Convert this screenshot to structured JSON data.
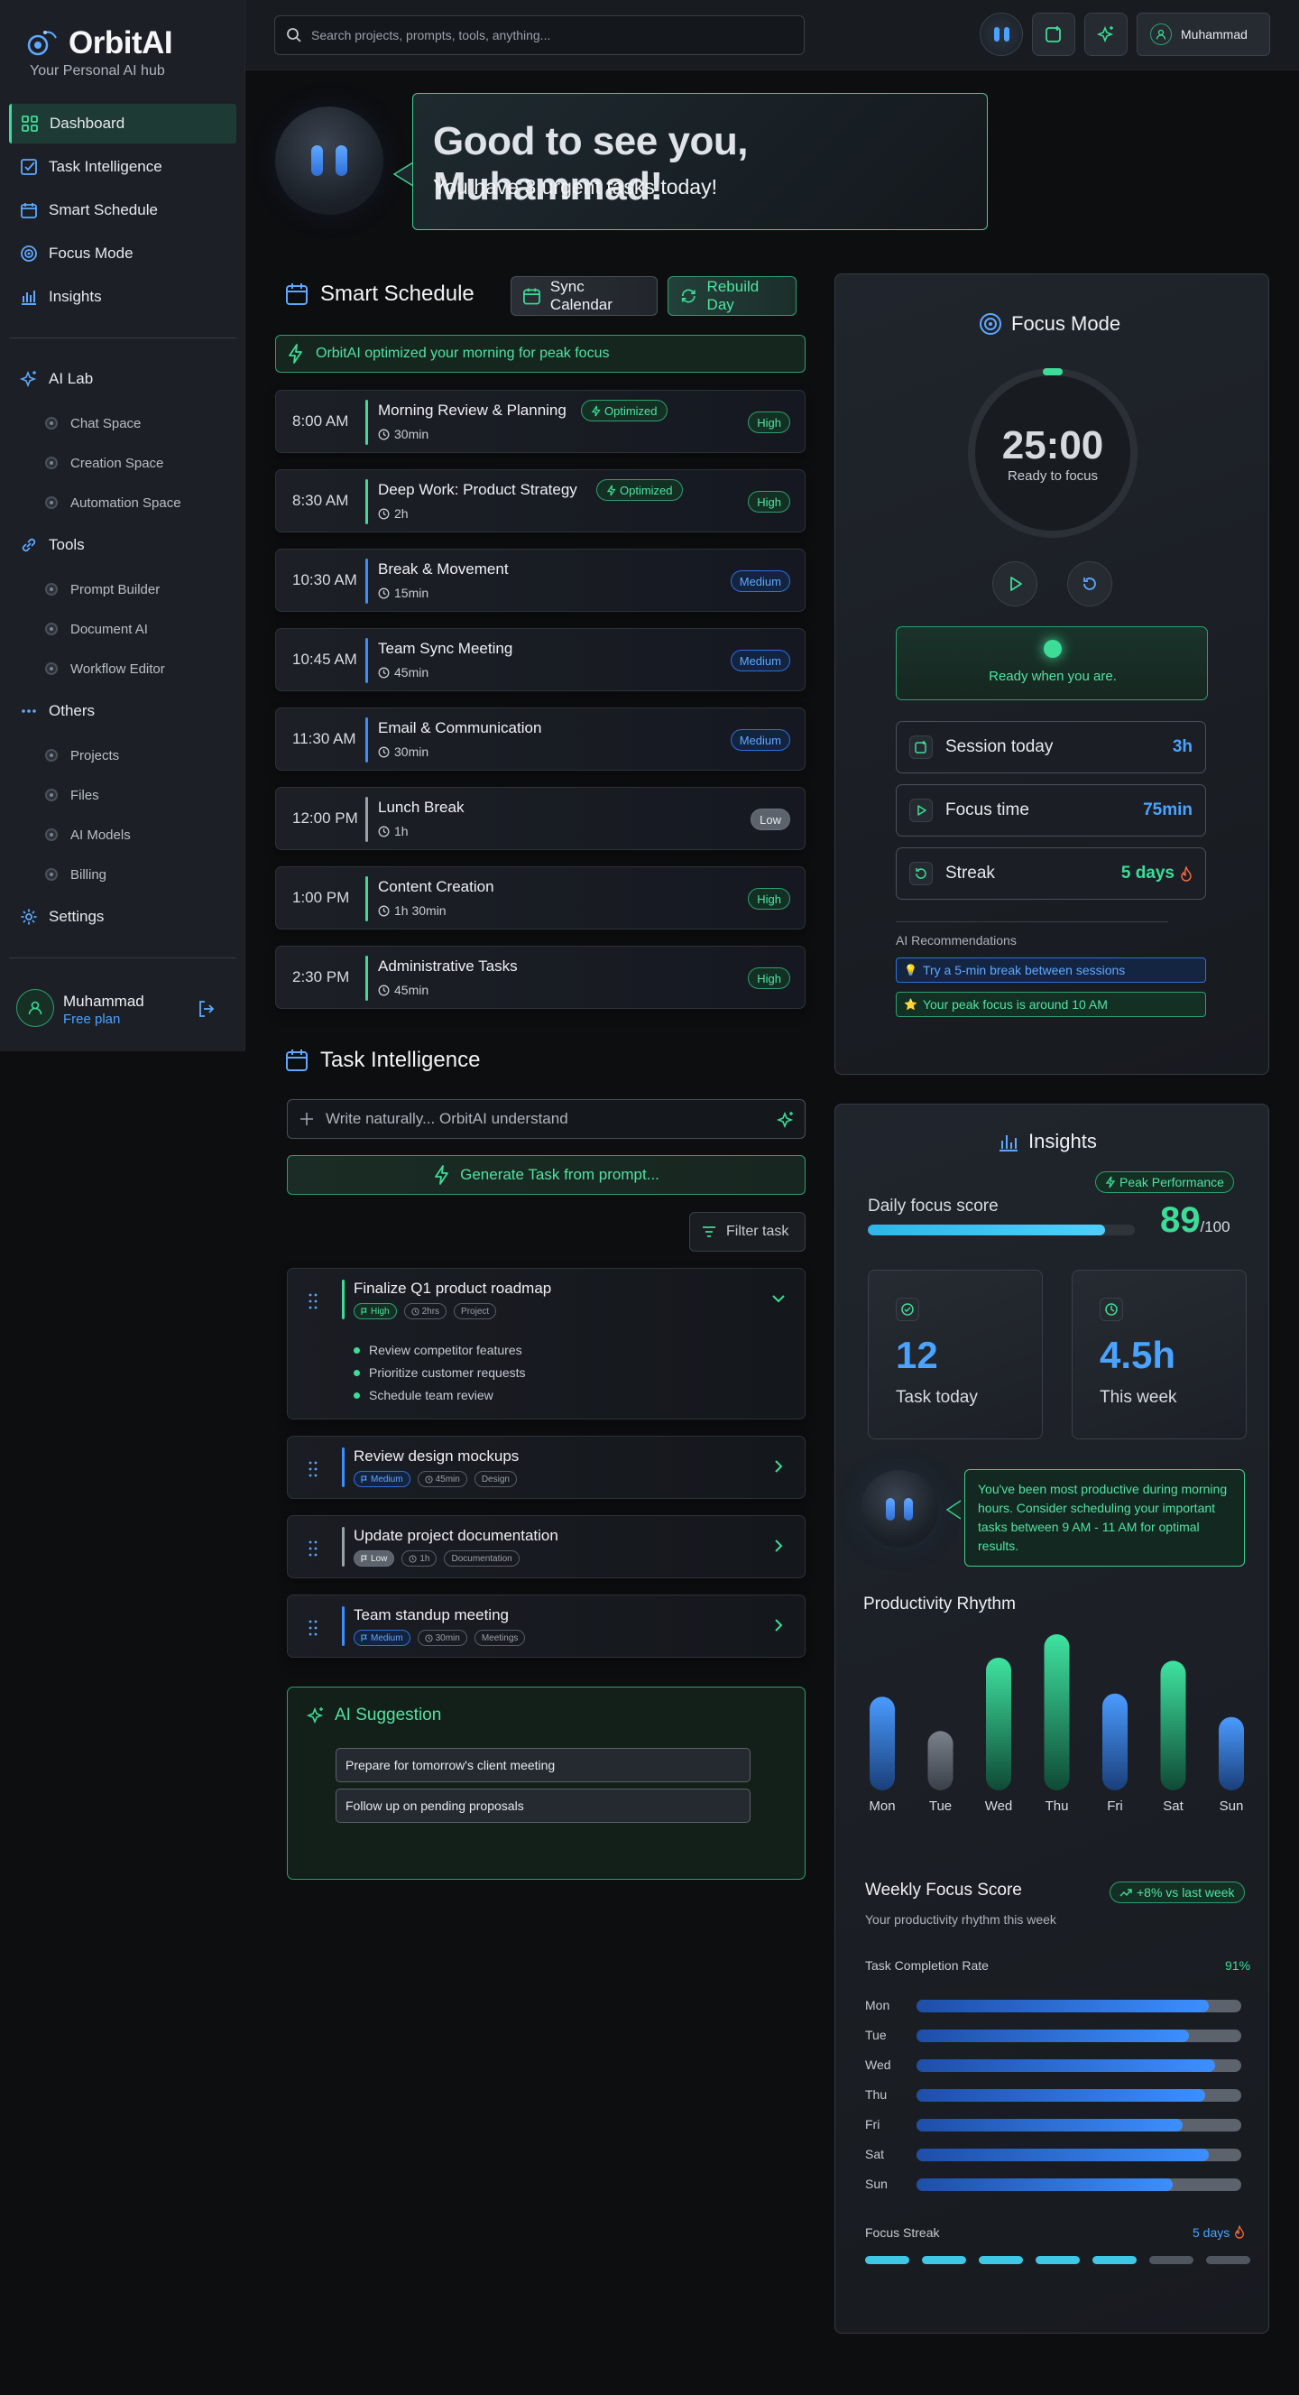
{
  "brand": {
    "name": "OrbitAI",
    "tagline": "Your Personal AI hub"
  },
  "sidebar": {
    "main": [
      {
        "label": "Dashboard",
        "icon": "grid-icon",
        "active": true
      },
      {
        "label": "Task Intelligence",
        "icon": "check-square-icon"
      },
      {
        "label": "Smart Schedule",
        "icon": "calendar-icon"
      },
      {
        "label": "Focus Mode",
        "icon": "target-icon"
      },
      {
        "label": "Insights",
        "icon": "bar-chart-icon"
      }
    ],
    "ai_lab": {
      "label": "AI Lab",
      "items": [
        "Chat Space",
        "Creation Space",
        "Automation Space"
      ]
    },
    "tools": {
      "label": "Tools",
      "items": [
        "Prompt Builder",
        "Document AI",
        "Workflow Editor"
      ]
    },
    "others": {
      "label": "Others",
      "items": [
        "Projects",
        "Files",
        "AI Models",
        "Billing"
      ]
    },
    "settings": "Settings",
    "user": {
      "name": "Muhammad",
      "plan": "Free plan"
    }
  },
  "header": {
    "search_placeholder": "Search projects, prompts, tools, anything...",
    "user": "Muhammad"
  },
  "greeting": {
    "title": "Good to see you, Muhammad!",
    "subtitle": "You have 3 urgent tasks today!"
  },
  "schedule": {
    "title": "Smart Schedule",
    "sync": "Sync Calendar",
    "rebuild": "Rebuild Day",
    "banner": "OrbitAI optimized your morning for peak focus",
    "slots": [
      {
        "time": "8:00 AM",
        "name": "Morning Review & Planning",
        "duration": "30min",
        "priority": "High",
        "optimized": "Optimized"
      },
      {
        "time": "8:30 AM",
        "name": "Deep Work: Product Strategy",
        "duration": "2h",
        "priority": "High",
        "optimized": "Optimized"
      },
      {
        "time": "10:30 AM",
        "name": "Break & Movement",
        "duration": "15min",
        "priority": "Medium"
      },
      {
        "time": "10:45 AM",
        "name": "Team Sync Meeting",
        "duration": "45min",
        "priority": "Medium"
      },
      {
        "time": "11:30 AM",
        "name": "Email & Communication",
        "duration": "30min",
        "priority": "Medium"
      },
      {
        "time": "12:00 PM",
        "name": "Lunch Break",
        "duration": "1h",
        "priority": "Low"
      },
      {
        "time": "1:00 PM",
        "name": "Content Creation",
        "duration": "1h 30min",
        "priority": "High"
      },
      {
        "time": "2:30 PM",
        "name": "Administrative Tasks",
        "duration": "45min",
        "priority": "High"
      }
    ]
  },
  "tasks": {
    "title": "Task Intelligence",
    "input_placeholder": "Write naturally... OrbitAI understand",
    "generate": "Generate Task from prompt...",
    "filter": "Filter task",
    "items": [
      {
        "name": "Finalize Q1 product roadmap",
        "priority": "High",
        "time": "2hrs",
        "tag": "Project",
        "subtasks": [
          "Review competitor features",
          "Prioritize customer requests",
          "Schedule team review"
        ]
      },
      {
        "name": "Review design mockups",
        "priority": "Medium",
        "time": "45min",
        "tag": "Design"
      },
      {
        "name": "Update project documentation",
        "priority": "Low",
        "time": "1h",
        "tag": "Documentation"
      },
      {
        "name": "Team standup meeting",
        "priority": "Medium",
        "time": "30min",
        "tag": "Meetings"
      }
    ],
    "suggestion": {
      "title": "AI Suggestion",
      "items": [
        "Prepare for tomorrow's client meeting",
        "Follow up on pending proposals"
      ]
    }
  },
  "focus": {
    "title": "Focus Mode",
    "timer": "25:00",
    "timer_label": "Ready to focus",
    "ready": "Ready when you are.",
    "stats": [
      {
        "label": "Session today",
        "value": "3h",
        "color": "#4aa3ff",
        "icon": "square-icon"
      },
      {
        "label": "Focus time",
        "value": "75min",
        "color": "#4aa3ff",
        "icon": "play-icon"
      },
      {
        "label": "Streak",
        "value": "5 days",
        "color": "#3ddc97",
        "icon": "refresh-icon"
      }
    ],
    "reco_title": "AI Recommendations",
    "recos": [
      {
        "text": "Try a 5-min break between sessions",
        "emoji": "💡"
      },
      {
        "text": "Your peak focus is around 10 AM",
        "emoji": "⭐"
      }
    ]
  },
  "insights": {
    "title": "Insights",
    "badge": "Peak Performance",
    "score_label": "Daily focus score",
    "score": "89",
    "score_max": "/100",
    "score_fraction": 0.89,
    "kpis": [
      {
        "value": "12",
        "label": "Task today",
        "icon": "check-icon"
      },
      {
        "value": "4.5h",
        "label": "This week",
        "icon": "clock-icon"
      }
    ],
    "message": "You've been most productive during morning hours. Consider scheduling your important tasks between 9 AM - 11 AM for optimal results.",
    "rhythm_title": "Productivity Rhythm",
    "weekly_title": "Weekly Focus Score",
    "weekly_badge": "+8% vs last week",
    "weekly_sub": "Your productivity rhythm this week",
    "completion_label": "Task Completion Rate",
    "completion": "91%",
    "streak_label": "Focus Streak",
    "streak_value": "5 days",
    "streak_total": 7,
    "streak_done": 5
  },
  "chart_data": [
    {
      "type": "bar",
      "title": "Productivity Rhythm",
      "categories": [
        "Mon",
        "Tue",
        "Wed",
        "Thu",
        "Fri",
        "Sat",
        "Sun"
      ],
      "values": [
        60,
        38,
        85,
        100,
        62,
        83,
        47
      ],
      "colors": [
        "blue",
        "gray",
        "green",
        "green",
        "blue",
        "green",
        "blue"
      ]
    },
    {
      "type": "bar",
      "orientation": "horizontal",
      "title": "Weekly Focus Score",
      "categories": [
        "Mon",
        "Tue",
        "Wed",
        "Thu",
        "Fri",
        "Sat",
        "Sun"
      ],
      "values": [
        90,
        84,
        92,
        89,
        82,
        90,
        79
      ],
      "xlim": [
        0,
        100
      ]
    }
  ]
}
